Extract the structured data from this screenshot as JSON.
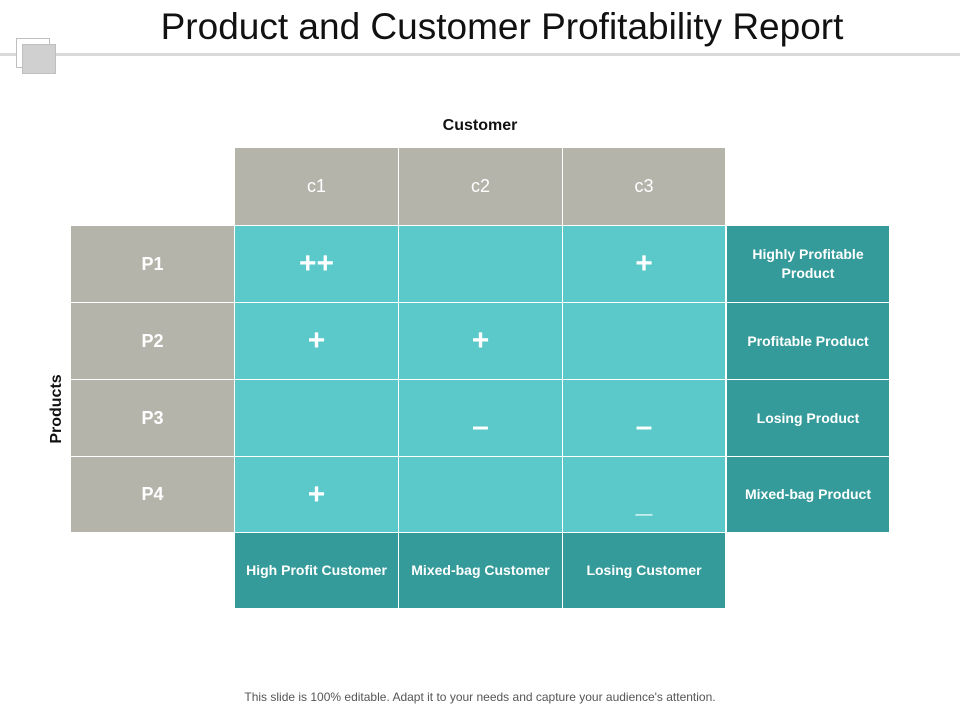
{
  "title": "Product and Customer Profitability Report",
  "customer_axis": "Customer",
  "products_axis": "Products",
  "columns": [
    "c1",
    "c2",
    "c3"
  ],
  "rows": [
    {
      "label": "P1",
      "cells": [
        "++",
        "",
        "+"
      ],
      "category": "Highly Profitable Product"
    },
    {
      "label": "P2",
      "cells": [
        "+",
        "+",
        ""
      ],
      "category": "Profitable Product"
    },
    {
      "label": "P3",
      "cells": [
        "",
        "–",
        "–"
      ],
      "category": "Losing Product"
    },
    {
      "label": "P4",
      "cells": [
        "+",
        "",
        "_"
      ],
      "category": "Mixed-bag Product"
    }
  ],
  "customer_categories": [
    "High Profit Customer",
    "Mixed-bag Customer",
    "Losing Customer"
  ],
  "footer": "This slide is 100% editable. Adapt it to your needs and capture your audience's attention.",
  "colors": {
    "header_gray": "#b5b4ab",
    "data_teal": "#5bc8ca",
    "category_teal": "#349b9a"
  }
}
